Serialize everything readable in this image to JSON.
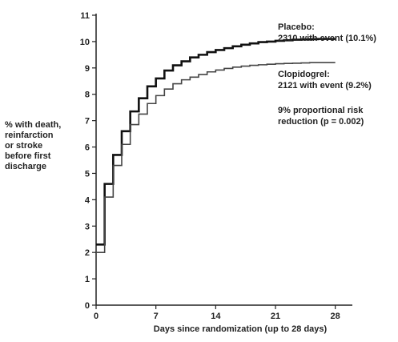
{
  "chart_data": {
    "type": "line",
    "title": "",
    "xlabel": "Days since randomization (up to 28 days)",
    "ylabel_lines": [
      "% with death,",
      "reinfarction",
      "or stroke",
      "before first",
      "discharge"
    ],
    "xlim": [
      0,
      30
    ],
    "ylim": [
      0,
      11
    ],
    "xticks": [
      "0",
      "7",
      "14",
      "21",
      "28"
    ],
    "yticks": [
      "0",
      "1",
      "2",
      "3",
      "4",
      "5",
      "6",
      "7",
      "8",
      "9",
      "10",
      "11"
    ],
    "grid": false,
    "series": [
      {
        "name": "Placebo",
        "color": "#111111",
        "x": [
          0,
          1,
          2,
          3,
          4,
          5,
          6,
          7,
          8,
          9,
          10,
          11,
          12,
          13,
          14,
          15,
          16,
          17,
          18,
          19,
          20,
          21,
          22,
          23,
          24,
          25,
          26,
          27,
          28
        ],
        "values": [
          2.3,
          4.6,
          5.7,
          6.6,
          7.35,
          7.85,
          8.3,
          8.6,
          8.9,
          9.1,
          9.25,
          9.4,
          9.5,
          9.6,
          9.68,
          9.75,
          9.82,
          9.88,
          9.93,
          9.98,
          10.0,
          10.03,
          10.05,
          10.07,
          10.08,
          10.09,
          10.1,
          10.1,
          10.1
        ]
      },
      {
        "name": "Clopidogrel",
        "color": "#444444",
        "x": [
          0,
          1,
          2,
          3,
          4,
          5,
          6,
          7,
          8,
          9,
          10,
          11,
          12,
          13,
          14,
          15,
          16,
          17,
          18,
          19,
          20,
          21,
          22,
          23,
          24,
          25,
          26,
          27,
          28
        ],
        "values": [
          2.0,
          4.1,
          5.3,
          6.1,
          6.85,
          7.25,
          7.65,
          7.95,
          8.2,
          8.4,
          8.55,
          8.65,
          8.75,
          8.85,
          8.92,
          8.98,
          9.03,
          9.07,
          9.1,
          9.12,
          9.14,
          9.16,
          9.17,
          9.18,
          9.19,
          9.2,
          9.2,
          9.2,
          9.2
        ]
      }
    ],
    "annotations": {
      "placebo": [
        "Placebo:",
        "2310 with event (10.1%)"
      ],
      "clopidogrel": [
        "Clopidogrel:",
        "2121 with event (9.2%)"
      ],
      "risk": [
        "9% proportional risk",
        "reduction (p = 0.002)"
      ]
    }
  }
}
